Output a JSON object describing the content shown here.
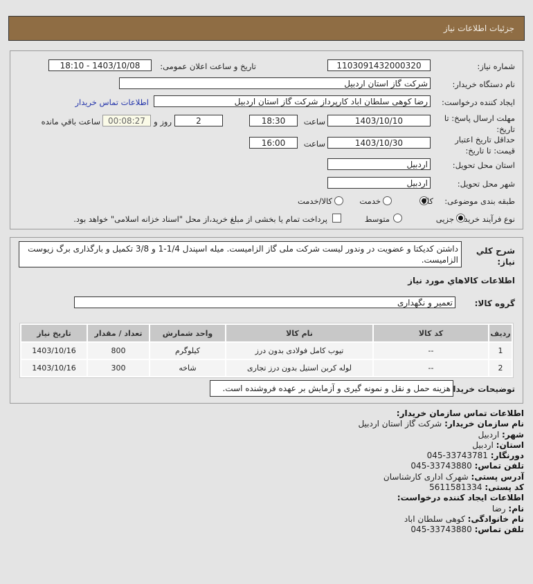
{
  "header": {
    "title": "جزئیات اطلاعات نیاز"
  },
  "form": {
    "need_number_label": "شماره نياز:",
    "need_number": "1103091432000320",
    "announce_label": "تاریخ و ساعت اعلان عمومی:",
    "announce_value": "1403/10/08 - 18:10",
    "buyer_label": "نام دستگاه خريدار:",
    "buyer": "شرکت گاز استان اردبیل",
    "creator_label": "ايجاد کننده درخواست:",
    "creator": "رضا کوهی سلطان اباد کارپرداز شرکت گاز استان اردبیل",
    "contact_link": "اطلاعات تماس خريدار",
    "deadline_label": "مهلت ارسال پاسخ: تا تاریخ:",
    "deadline_date": "1403/10/10",
    "time_label": "ساعت",
    "deadline_time": "18:30",
    "days": "2",
    "days_label": "روز و",
    "remaining": "00:08:27",
    "remaining_label": "ساعت باقي مانده",
    "validity_label": "حداقل تاریخ اعتبار قیمت: تا تاریخ:",
    "validity_date": "1403/10/30",
    "validity_time": "16:00",
    "province_label": "استان محل تحویل:",
    "province": "اردبیل",
    "city_label": "شهر محل تحویل:",
    "city": "اردبیل",
    "category_label": "طبقه بندی موضوعی:",
    "category_options": [
      "کالا",
      "خدمت",
      "کالا/خدمت"
    ],
    "category_selected": "کالا",
    "process_label": "نوع فرآیند خرید :",
    "process_options": [
      "جزیی",
      "متوسط"
    ],
    "process_selected": "جزیی",
    "payment_note": "پرداخت تمام یا بخشی از مبلغ خرید،از محل \"اسناد خزانه اسلامی\" خواهد بود.",
    "payment_checked": false
  },
  "details": {
    "description_label": "شرح كلي نياز:",
    "description": "داشتن کدیکتا و عضویت در وندور لیست شرکت ملی گاز الزامیست. میله اسپندل 1/4-1 و 3/8 تکمیل و بارگذاری برگ زیوست الزامیست.",
    "goods_title": "اطلاعات كالاهاي مورد نياز",
    "group_label": "گروه کالا:",
    "group": "تعمیر و نگهداری",
    "table": {
      "headers": [
        "ردیف",
        "کد کالا",
        "نام کالا",
        "واحد شمارش",
        "تعداد / مقدار",
        "تاریخ نیاز"
      ],
      "rows": [
        [
          "1",
          "--",
          "تیوب کامل فولادی بدون درز",
          "کیلوگرم",
          "800",
          "1403/10/16"
        ],
        [
          "2",
          "--",
          "لوله کربن استیل بدون درز تجاری",
          "شاخه",
          "300",
          "1403/10/16"
        ]
      ]
    },
    "notes_label": "توضیحات خریدار:",
    "notes": "هزینه حمل و نقل و نمونه گیری و آزمایش بر عهده فروشنده است."
  },
  "contact": {
    "title": "اطلاعات تماس سازمان خریدار:",
    "org_label": "نام سازمان خریدار:",
    "org": "شرکت گاز استان اردبیل",
    "city_label": "شهر:",
    "city": "اردبیل",
    "province_label": "استان:",
    "province": "اردبیل",
    "fax_label": "دورنگار:",
    "fax": "045-33743781",
    "phone_label": "تلفن تماس:",
    "phone": "045-33743880",
    "address_label": "آدرس پستی:",
    "address": "شهرک اداری کارشناسان",
    "postal_label": "کد پستی:",
    "postal": "5611581334",
    "creator_title": "اطلاعات ایجاد کننده درخواست:",
    "name_label": "نام:",
    "name": "رضا",
    "family_label": "نام خانوادگی:",
    "family": "کوهی سلطان اباد",
    "creator_phone_label": "تلفن تماس:",
    "creator_phone": "045-33743880"
  }
}
